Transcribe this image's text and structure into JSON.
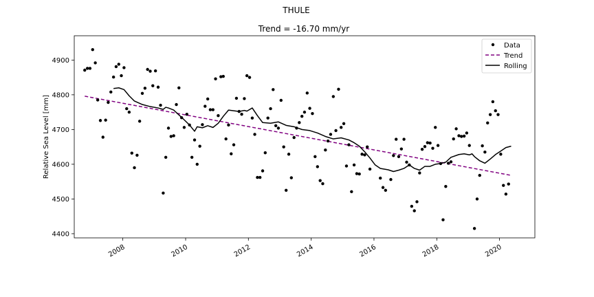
{
  "figure": {
    "suptitle": "THULE"
  },
  "chart_data": {
    "type": "scatter",
    "title": "Trend = -16.70 mm/yr",
    "xlabel": "",
    "ylabel": "Relative Sea Level [mm]",
    "x_axis": "date",
    "xlim": [
      "2006-06-15",
      "2021-02-15"
    ],
    "ylim": [
      4388,
      4970
    ],
    "xticks": [
      "2008",
      "2010",
      "2012",
      "2014",
      "2016",
      "2018",
      "2020"
    ],
    "yticks": [
      4400,
      4500,
      4600,
      4700,
      4800,
      4900
    ],
    "grid": false,
    "legend": {
      "position": "top-right",
      "entries": [
        "Data",
        "Trend",
        "Rolling"
      ]
    },
    "colors": {
      "data": "#000000",
      "trend": "#800080",
      "rolling": "#000000"
    },
    "series": [
      {
        "name": "Data",
        "style": "points",
        "points": [
          [
            "2006-10-15",
            4871
          ],
          [
            "2006-11-15",
            4876
          ],
          [
            "2006-12-15",
            4876
          ],
          [
            "2007-01-15",
            4930
          ],
          [
            "2007-02-15",
            4892
          ],
          [
            "2007-03-15",
            4785
          ],
          [
            "2007-04-15",
            4726
          ],
          [
            "2007-05-15",
            4678
          ],
          [
            "2007-06-15",
            4727
          ],
          [
            "2007-07-15",
            4778
          ],
          [
            "2007-08-15",
            4808
          ],
          [
            "2007-09-15",
            4851
          ],
          [
            "2007-10-15",
            4881
          ],
          [
            "2007-11-15",
            4888
          ],
          [
            "2007-12-15",
            4855
          ],
          [
            "2008-01-15",
            4878
          ],
          [
            "2008-02-15",
            4760
          ],
          [
            "2008-03-15",
            4750
          ],
          [
            "2008-04-15",
            4632
          ],
          [
            "2008-05-15",
            4590
          ],
          [
            "2008-06-15",
            4626
          ],
          [
            "2008-07-15",
            4724
          ],
          [
            "2008-08-15",
            4804
          ],
          [
            "2008-09-15",
            4819
          ],
          [
            "2008-10-15",
            4873
          ],
          [
            "2008-11-15",
            4868
          ],
          [
            "2008-12-15",
            4826
          ],
          [
            "2009-01-15",
            4869
          ],
          [
            "2009-02-15",
            4822
          ],
          [
            "2009-03-15",
            4770
          ],
          [
            "2009-04-15",
            4517
          ],
          [
            "2009-05-15",
            4620
          ],
          [
            "2009-06-15",
            4704
          ],
          [
            "2009-07-15",
            4680
          ],
          [
            "2009-08-15",
            4682
          ],
          [
            "2009-09-15",
            4772
          ],
          [
            "2009-10-15",
            4820
          ],
          [
            "2009-11-15",
            4734
          ],
          [
            "2009-12-15",
            4706
          ],
          [
            "2010-01-15",
            4744
          ],
          [
            "2010-02-15",
            4713
          ],
          [
            "2010-03-15",
            4620
          ],
          [
            "2010-04-15",
            4670
          ],
          [
            "2010-05-15",
            4600
          ],
          [
            "2010-06-15",
            4652
          ],
          [
            "2010-07-15",
            4714
          ],
          [
            "2010-08-15",
            4767
          ],
          [
            "2010-09-15",
            4788
          ],
          [
            "2010-10-15",
            4757
          ],
          [
            "2010-11-15",
            4757
          ],
          [
            "2010-12-15",
            4846
          ],
          [
            "2011-01-15",
            4740
          ],
          [
            "2011-02-15",
            4852
          ],
          [
            "2011-03-15",
            4853
          ],
          [
            "2011-04-15",
            4673
          ],
          [
            "2011-05-15",
            4713
          ],
          [
            "2011-06-15",
            4630
          ],
          [
            "2011-07-15",
            4656
          ],
          [
            "2011-08-15",
            4790
          ],
          [
            "2011-09-15",
            4752
          ],
          [
            "2011-10-15",
            4744
          ],
          [
            "2011-11-15",
            4789
          ],
          [
            "2011-12-15",
            4855
          ],
          [
            "2012-01-15",
            4850
          ],
          [
            "2012-02-15",
            4733
          ],
          [
            "2012-03-15",
            4686
          ],
          [
            "2012-04-15",
            4562
          ],
          [
            "2012-05-15",
            4562
          ],
          [
            "2012-06-15",
            4581
          ],
          [
            "2012-07-15",
            4633
          ],
          [
            "2012-08-15",
            4733
          ],
          [
            "2012-09-15",
            4760
          ],
          [
            "2012-10-15",
            4815
          ],
          [
            "2012-11-15",
            4711
          ],
          [
            "2012-12-15",
            4704
          ],
          [
            "2013-01-15",
            4784
          ],
          [
            "2013-02-15",
            4650
          ],
          [
            "2013-03-15",
            4525
          ],
          [
            "2013-04-15",
            4629
          ],
          [
            "2013-05-15",
            4561
          ],
          [
            "2013-06-15",
            4677
          ],
          [
            "2013-07-15",
            4704
          ],
          [
            "2013-08-15",
            4720
          ],
          [
            "2013-09-15",
            4738
          ],
          [
            "2013-10-15",
            4750
          ],
          [
            "2013-11-15",
            4805
          ],
          [
            "2013-12-15",
            4761
          ],
          [
            "2014-01-15",
            4746
          ],
          [
            "2014-02-15",
            4622
          ],
          [
            "2014-03-15",
            4593
          ],
          [
            "2014-04-15",
            4553
          ],
          [
            "2014-05-15",
            4544
          ],
          [
            "2014-06-15",
            4641
          ],
          [
            "2014-07-15",
            4667
          ],
          [
            "2014-08-15",
            4686
          ],
          [
            "2014-09-15",
            4795
          ],
          [
            "2014-10-15",
            4697
          ],
          [
            "2014-11-15",
            4816
          ],
          [
            "2014-12-15",
            4706
          ],
          [
            "2015-01-15",
            4717
          ],
          [
            "2015-02-15",
            4595
          ],
          [
            "2015-03-15",
            4656
          ],
          [
            "2015-04-15",
            4521
          ],
          [
            "2015-05-15",
            4598
          ],
          [
            "2015-06-15",
            4573
          ],
          [
            "2015-07-15",
            4572
          ],
          [
            "2015-08-15",
            4629
          ],
          [
            "2015-09-15",
            4627
          ],
          [
            "2015-10-15",
            4650
          ],
          [
            "2015-11-15",
            4586
          ],
          [
            "2016-03-15",
            4560
          ],
          [
            "2016-04-15",
            4533
          ],
          [
            "2016-05-15",
            4525
          ],
          [
            "2016-07-15",
            4556
          ],
          [
            "2016-08-15",
            4625
          ],
          [
            "2016-09-15",
            4672
          ],
          [
            "2016-10-15",
            4622
          ],
          [
            "2016-11-15",
            4644
          ],
          [
            "2016-12-15",
            4672
          ],
          [
            "2017-01-15",
            4606
          ],
          [
            "2017-02-15",
            4598
          ],
          [
            "2017-03-15",
            4479
          ],
          [
            "2017-04-15",
            4466
          ],
          [
            "2017-05-15",
            4492
          ],
          [
            "2017-06-15",
            4575
          ],
          [
            "2017-07-15",
            4643
          ],
          [
            "2017-08-15",
            4651
          ],
          [
            "2017-09-15",
            4662
          ],
          [
            "2017-10-15",
            4661
          ],
          [
            "2017-11-15",
            4646
          ],
          [
            "2017-12-15",
            4706
          ],
          [
            "2018-01-15",
            4654
          ],
          [
            "2018-02-15",
            4602
          ],
          [
            "2018-03-15",
            4440
          ],
          [
            "2018-04-15",
            4536
          ],
          [
            "2018-05-15",
            4603
          ],
          [
            "2018-06-15",
            4607
          ],
          [
            "2018-07-15",
            4673
          ],
          [
            "2018-08-15",
            4702
          ],
          [
            "2018-09-15",
            4682
          ],
          [
            "2018-10-15",
            4680
          ],
          [
            "2018-11-15",
            4681
          ],
          [
            "2018-12-15",
            4690
          ],
          [
            "2019-01-15",
            4654
          ],
          [
            "2019-03-15",
            4415
          ],
          [
            "2019-04-15",
            4500
          ],
          [
            "2019-05-15",
            4568
          ],
          [
            "2019-06-15",
            4653
          ],
          [
            "2019-07-15",
            4635
          ],
          [
            "2019-08-15",
            4719
          ],
          [
            "2019-09-15",
            4743
          ],
          [
            "2019-10-15",
            4780
          ],
          [
            "2019-11-15",
            4754
          ],
          [
            "2019-12-15",
            4743
          ],
          [
            "2020-01-15",
            4629
          ],
          [
            "2020-02-15",
            4539
          ],
          [
            "2020-03-15",
            4514
          ],
          [
            "2020-04-15",
            4543
          ]
        ]
      },
      {
        "name": "Trend",
        "style": "dashed-line",
        "points": [
          [
            "2006-10-15",
            4796
          ],
          [
            "2020-05-15",
            4568
          ]
        ]
      },
      {
        "name": "Rolling",
        "style": "line",
        "points": [
          [
            "2007-09-15",
            4818
          ],
          [
            "2007-11-15",
            4820
          ],
          [
            "2008-01-15",
            4815
          ],
          [
            "2008-03-15",
            4797
          ],
          [
            "2008-05-15",
            4782
          ],
          [
            "2008-08-15",
            4772
          ],
          [
            "2008-11-15",
            4766
          ],
          [
            "2009-02-15",
            4762
          ],
          [
            "2009-04-15",
            4758
          ],
          [
            "2009-05-15",
            4764
          ],
          [
            "2009-06-15",
            4762
          ],
          [
            "2009-08-15",
            4756
          ],
          [
            "2009-10-15",
            4742
          ],
          [
            "2009-12-15",
            4728
          ],
          [
            "2010-02-15",
            4713
          ],
          [
            "2010-04-15",
            4695
          ],
          [
            "2010-05-15",
            4708
          ],
          [
            "2010-07-15",
            4705
          ],
          [
            "2010-09-15",
            4711
          ],
          [
            "2010-11-15",
            4706
          ],
          [
            "2011-01-15",
            4718
          ],
          [
            "2011-03-15",
            4738
          ],
          [
            "2011-05-15",
            4756
          ],
          [
            "2011-07-15",
            4754
          ],
          [
            "2011-09-15",
            4752
          ],
          [
            "2011-11-15",
            4755
          ],
          [
            "2011-12-15",
            4753
          ],
          [
            "2012-02-15",
            4762
          ],
          [
            "2012-04-15",
            4740
          ],
          [
            "2012-06-15",
            4720
          ],
          [
            "2012-09-15",
            4718
          ],
          [
            "2012-12-15",
            4722
          ],
          [
            "2013-03-15",
            4712
          ],
          [
            "2013-06-15",
            4708
          ],
          [
            "2013-09-15",
            4700
          ],
          [
            "2013-12-15",
            4697
          ],
          [
            "2014-03-15",
            4690
          ],
          [
            "2014-06-15",
            4680
          ],
          [
            "2014-09-15",
            4673
          ],
          [
            "2014-12-15",
            4676
          ],
          [
            "2015-03-15",
            4670
          ],
          [
            "2015-05-15",
            4662
          ],
          [
            "2015-07-15",
            4652
          ],
          [
            "2015-09-15",
            4636
          ],
          [
            "2015-11-15",
            4618
          ],
          [
            "2016-01-15",
            4598
          ],
          [
            "2016-03-15",
            4588
          ],
          [
            "2016-06-15",
            4584
          ],
          [
            "2016-08-15",
            4579
          ],
          [
            "2016-10-15",
            4583
          ],
          [
            "2016-12-15",
            4588
          ],
          [
            "2017-02-15",
            4598
          ],
          [
            "2017-04-15",
            4588
          ],
          [
            "2017-06-15",
            4583
          ],
          [
            "2017-08-15",
            4594
          ],
          [
            "2017-10-15",
            4594
          ],
          [
            "2017-12-15",
            4600
          ],
          [
            "2018-02-15",
            4602
          ],
          [
            "2018-04-15",
            4606
          ],
          [
            "2018-06-15",
            4620
          ],
          [
            "2018-09-15",
            4628
          ],
          [
            "2018-11-15",
            4630
          ],
          [
            "2019-01-15",
            4627
          ],
          [
            "2019-02-15",
            4630
          ],
          [
            "2019-03-15",
            4622
          ],
          [
            "2019-05-15",
            4610
          ],
          [
            "2019-07-15",
            4603
          ],
          [
            "2019-09-15",
            4615
          ],
          [
            "2019-11-15",
            4628
          ],
          [
            "2020-01-15",
            4638
          ],
          [
            "2020-03-15",
            4648
          ],
          [
            "2020-05-15",
            4652
          ]
        ]
      }
    ]
  }
}
